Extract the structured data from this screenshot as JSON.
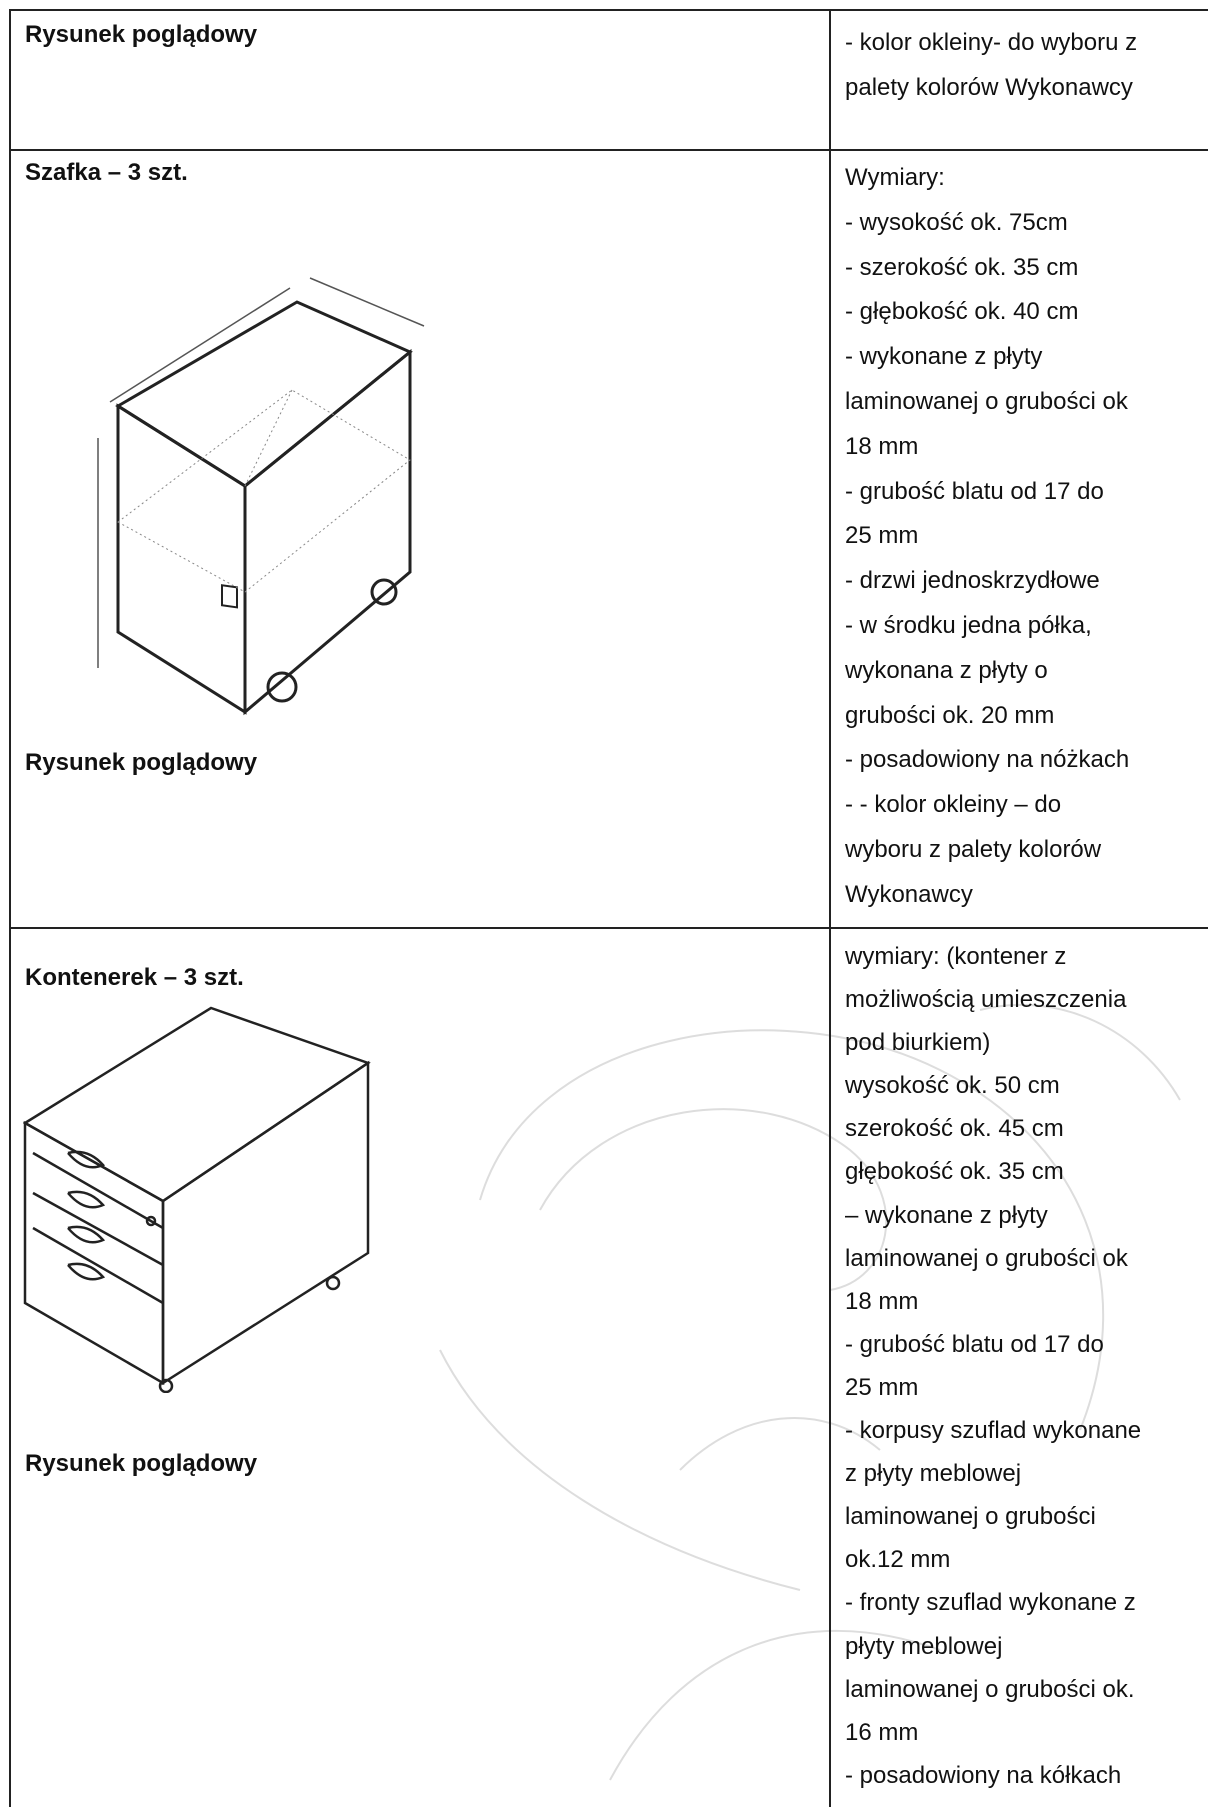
{
  "table": {
    "rows": [
      {
        "left": {
          "title": "Rysunek poglądowy"
        },
        "right": {
          "lines": [
            "- kolor okleiny- do wyboru z",
            "palety kolorów Wykonawcy"
          ]
        }
      },
      {
        "left": {
          "title": "Szafka – 3 szt.",
          "caption": "Rysunek poglądowy"
        },
        "right": {
          "lines": [
            "Wymiary:",
            "- wysokość ok. 75cm",
            "- szerokość ok. 35 cm",
            "- głębokość ok. 40 cm",
            "-  wykonane z płyty",
            "laminowanej o grubości ok",
            "18 mm",
            "-   grubość blatu od 17 do",
            "25 mm",
            "- drzwi jednoskrzydłowe",
            "- w środku jedna półka,",
            "wykonana z płyty o",
            "grubości ok. 20 mm",
            "- posadowiony na nóżkach",
            "- - kolor okleiny – do",
            "wyboru z palety kolorów",
            "Wykonawcy"
          ]
        }
      },
      {
        "left": {
          "title": "Kontenerek – 3 szt.",
          "caption": "Rysunek poglądowy"
        },
        "right": {
          "lines": [
            "wymiary: (kontener z",
            "możliwością umieszczenia",
            "pod biurkiem)",
            "wysokość ok. 50 cm",
            "szerokość ok. 45 cm",
            "głębokość ok. 35 cm",
            "– wykonane z płyty",
            "laminowanej o grubości ok",
            "18 mm",
            "-   grubość blatu od 17 do",
            "25 mm",
            "- korpusy szuflad wykonane",
            "z płyty meblowej",
            "laminowanej o grubości",
            "ok.12 mm",
            "- fronty szuflad wykonane z",
            "płyty meblowej",
            "laminowanej o grubości ok.",
            "16 mm",
            "-  posadowiony na kółkach"
          ]
        }
      }
    ]
  }
}
